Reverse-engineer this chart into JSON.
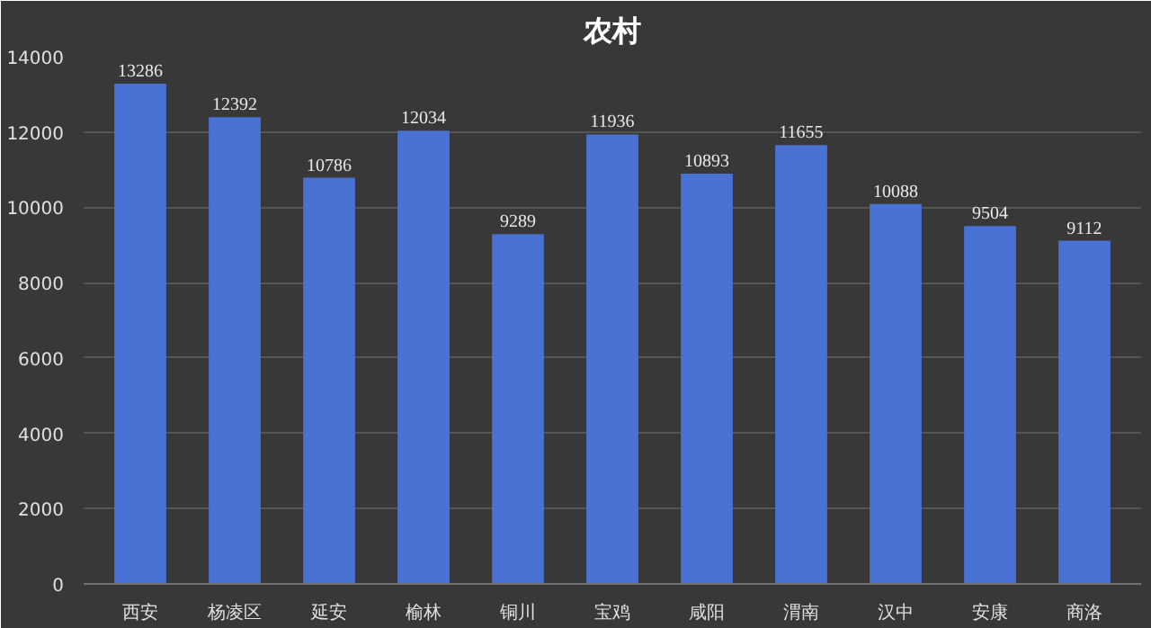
{
  "chart_data": {
    "type": "bar",
    "title": "农村",
    "categories": [
      "西安",
      "杨凌区",
      "延安",
      "榆林",
      "铜川",
      "宝鸡",
      "咸阳",
      "渭南",
      "汉中",
      "安康",
      "商洛"
    ],
    "values": [
      13286,
      12392,
      10786,
      12034,
      9289,
      11936,
      10893,
      11655,
      10088,
      9504,
      9112
    ],
    "color": "#4a72d4",
    "ylim": [
      0,
      14000
    ],
    "yticks": [
      0,
      2000,
      4000,
      6000,
      8000,
      10000,
      12000,
      14000
    ],
    "grid": "y",
    "data_labels": true
  }
}
